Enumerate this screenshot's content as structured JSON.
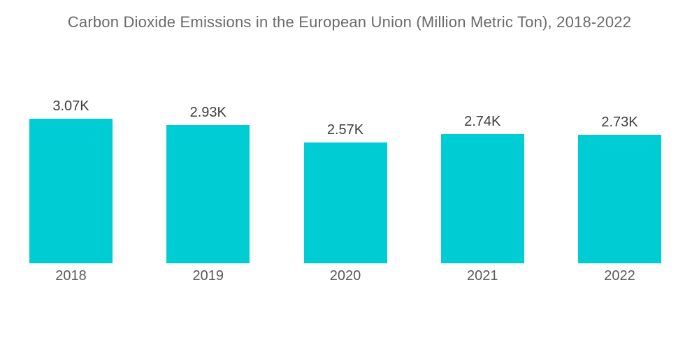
{
  "chart_data": {
    "type": "bar",
    "title": "Carbon Dioxide Emissions in the European Union (Million Metric Ton), 2018-2022",
    "categories": [
      "2018",
      "2019",
      "2020",
      "2021",
      "2022"
    ],
    "values": [
      3.07,
      2.93,
      2.57,
      2.74,
      2.73
    ],
    "value_labels": [
      "3.07K",
      "2.93K",
      "2.57K",
      "2.74K",
      "2.73K"
    ],
    "xlabel": "",
    "ylabel": "",
    "ylim": [
      0,
      3.07
    ],
    "grid": false,
    "legend": "none",
    "axes_visible": false,
    "colors": {
      "bar": "#00ccd3",
      "title_text": "#6a6a6a",
      "value_label_text": "#3d3d3d",
      "axis_label_text": "#595959",
      "background": "#ffffff"
    }
  }
}
